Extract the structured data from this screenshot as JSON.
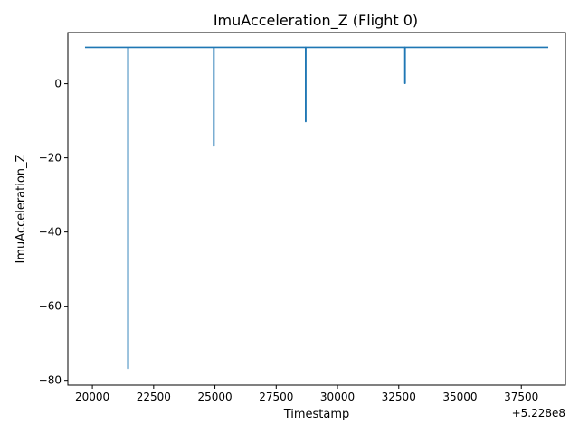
{
  "chart_data": {
    "type": "line",
    "title": "ImuAcceleration_Z (Flight 0)",
    "xlabel": "Timestamp",
    "ylabel": "ImuAcceleration_Z",
    "x_offset_label": "+5.228e8",
    "xlim": [
      19000,
      39300
    ],
    "ylim": [
      -81.3,
      13.8
    ],
    "x_ticks": [
      20000,
      22500,
      25000,
      27500,
      30000,
      32500,
      35000,
      37500
    ],
    "x_tick_labels": [
      "20000",
      "22500",
      "25000",
      "27500",
      "30000",
      "32500",
      "35000",
      "37500"
    ],
    "y_ticks": [
      0,
      -20,
      -40,
      -60,
      -80
    ],
    "y_tick_labels": [
      "0",
      "−20",
      "−40",
      "−60",
      "−80"
    ],
    "grid": false,
    "line_color": "#1f77b4",
    "series": [
      {
        "x": [
          19700,
          21450,
          21450,
          21460,
          21460,
          24950,
          24950,
          24960,
          24960,
          28700,
          28700,
          28710,
          28710,
          32750,
          32750,
          32760,
          32760,
          38600
        ],
        "values": [
          9.8,
          9.8,
          -76.8,
          -76.8,
          9.8,
          9.8,
          -16.8,
          -16.8,
          9.8,
          9.8,
          -10.2,
          -10.2,
          9.8,
          9.8,
          0.1,
          0.1,
          9.8,
          9.8
        ]
      }
    ]
  }
}
